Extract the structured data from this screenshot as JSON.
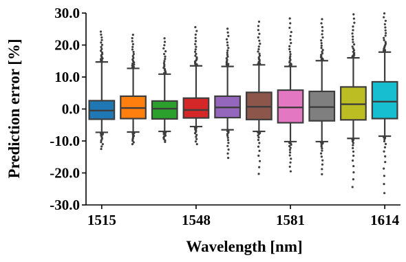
{
  "chart_data": {
    "type": "box",
    "xlabel": "Wavelength [nm]",
    "ylabel": "Prediction error [%]",
    "ylim": [
      -30.0,
      30.0
    ],
    "yticks": [
      "-30.0",
      "-20.0",
      "-10.0",
      "0.0",
      "10.0",
      "20.0",
      "30.0"
    ],
    "yticks_values": [
      -30,
      -20,
      -10,
      0,
      10,
      20,
      30
    ],
    "xticks": [
      "1515",
      "1548",
      "1581",
      "1614"
    ],
    "xticks_index": [
      0,
      3,
      6,
      9
    ],
    "grid": false,
    "boxes": [
      {
        "name": "1515",
        "color": "#1f77b4",
        "q1": -3.2,
        "median": -0.5,
        "q3": 2.6,
        "whisker_low": -7.3,
        "whisker_high": 14.7,
        "outliers_low_to": -12.5,
        "outliers_high_to": 24.2
      },
      {
        "name": "",
        "color": "#ff7f0e",
        "q1": -3.0,
        "median": 0.3,
        "q3": 4.0,
        "whisker_low": -7.2,
        "whisker_high": 12.7,
        "outliers_low_to": -11.0,
        "outliers_high_to": 23.2
      },
      {
        "name": "",
        "color": "#2ca02c",
        "q1": -3.1,
        "median": 0.1,
        "q3": 2.5,
        "whisker_low": -7.0,
        "whisker_high": 10.9,
        "outliers_low_to": -10.3,
        "outliers_high_to": 22.1
      },
      {
        "name": "1548",
        "color": "#d62728",
        "q1": -2.8,
        "median": -0.3,
        "q3": 3.4,
        "whisker_low": -5.5,
        "whisker_high": 13.5,
        "outliers_low_to": -11.0,
        "outliers_high_to": 25.6
      },
      {
        "name": "",
        "color": "#9467bd",
        "q1": -2.7,
        "median": 0.5,
        "q3": 4.0,
        "whisker_low": -6.5,
        "whisker_high": 13.3,
        "outliers_low_to": -15.3,
        "outliers_high_to": 25.1
      },
      {
        "name": "",
        "color": "#8c564b",
        "q1": -3.3,
        "median": 0.7,
        "q3": 5.2,
        "whisker_low": -7.0,
        "whisker_high": 13.8,
        "outliers_low_to": -20.3,
        "outliers_high_to": 27.3
      },
      {
        "name": "1581",
        "color": "#e377c2",
        "q1": -4.3,
        "median": 0.5,
        "q3": 5.9,
        "whisker_low": -10.2,
        "whisker_high": 13.3,
        "outliers_low_to": -19.5,
        "outliers_high_to": 28.3
      },
      {
        "name": "",
        "color": "#7f7f7f",
        "q1": -3.7,
        "median": 0.6,
        "q3": 5.5,
        "whisker_low": -10.2,
        "whisker_high": 15.1,
        "outliers_low_to": -20.4,
        "outliers_high_to": 28.1
      },
      {
        "name": "",
        "color": "#bcbd22",
        "q1": -3.4,
        "median": 1.5,
        "q3": 6.9,
        "whisker_low": -9.2,
        "whisker_high": 16.0,
        "outliers_low_to": -24.4,
        "outliers_high_to": 29.6
      },
      {
        "name": "1614",
        "color": "#17becf",
        "q1": -3.0,
        "median": 2.3,
        "q3": 8.5,
        "whisker_low": -8.5,
        "whisker_high": 17.8,
        "outliers_low_to": -26.3,
        "outliers_high_to": 29.9
      }
    ]
  }
}
